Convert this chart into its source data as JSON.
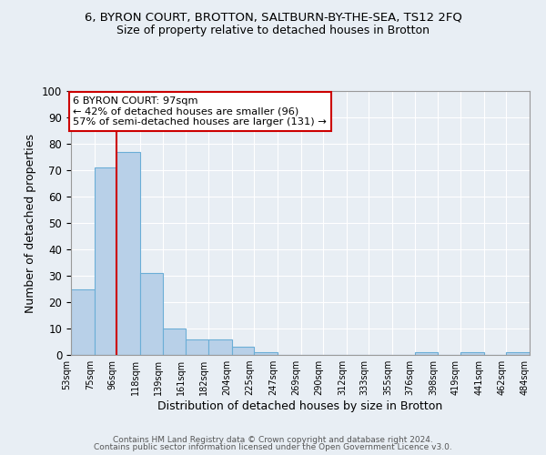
{
  "title1": "6, BYRON COURT, BROTTON, SALTBURN-BY-THE-SEA, TS12 2FQ",
  "title2": "Size of property relative to detached houses in Brotton",
  "xlabel": "Distribution of detached houses by size in Brotton",
  "ylabel": "Number of detached properties",
  "bar_left_edges": [
    53,
    75,
    96,
    118,
    139,
    161,
    182,
    204,
    225,
    247,
    269,
    290,
    312,
    333,
    355,
    376,
    398,
    419,
    441,
    462
  ],
  "bar_widths": [
    22,
    21,
    22,
    21,
    22,
    21,
    22,
    21,
    22,
    22,
    21,
    22,
    21,
    22,
    21,
    22,
    21,
    22,
    21,
    22
  ],
  "bar_heights": [
    25,
    71,
    77,
    31,
    10,
    6,
    6,
    3,
    1,
    0,
    0,
    0,
    0,
    0,
    0,
    1,
    0,
    1,
    0,
    1
  ],
  "tick_labels": [
    "53sqm",
    "75sqm",
    "96sqm",
    "118sqm",
    "139sqm",
    "161sqm",
    "182sqm",
    "204sqm",
    "225sqm",
    "247sqm",
    "269sqm",
    "290sqm",
    "312sqm",
    "333sqm",
    "355sqm",
    "376sqm",
    "398sqm",
    "419sqm",
    "441sqm",
    "462sqm",
    "484sqm"
  ],
  "bar_color": "#b8d0e8",
  "bar_edge_color": "#6baed6",
  "background_color": "#e8eef4",
  "grid_color": "#ffffff",
  "vline_x": 96,
  "vline_color": "#cc0000",
  "annotation_text": "6 BYRON COURT: 97sqm\n← 42% of detached houses are smaller (96)\n57% of semi-detached houses are larger (131) →",
  "annotation_box_color": "#ffffff",
  "annotation_box_edge": "#cc0000",
  "ylim": [
    0,
    100
  ],
  "footer1": "Contains HM Land Registry data © Crown copyright and database right 2024.",
  "footer2": "Contains public sector information licensed under the Open Government Licence v3.0."
}
